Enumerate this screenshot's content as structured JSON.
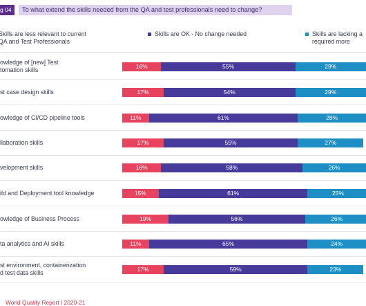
{
  "header": {
    "fig_label": "g 04",
    "title": "To what extend the skills needed from the QA and test professionals need to change?"
  },
  "chart_data": {
    "type": "bar",
    "stacked": true,
    "orientation": "horizontal",
    "xlim": [
      0,
      100
    ],
    "legend_position": "top",
    "series": [
      {
        "name": "Skills are less relevant to current\nQA and Test Professionals",
        "color": "#e8435e",
        "values": [
          16,
          17,
          11,
          17,
          16,
          15,
          19,
          11,
          17
        ]
      },
      {
        "name": "Skills are OK - No change needed",
        "color": "#463a9a",
        "values": [
          55,
          54,
          61,
          55,
          58,
          61,
          56,
          65,
          59
        ]
      },
      {
        "name": "Skills are lacking a\nrequired more",
        "color": "#1d8fc4",
        "values": [
          29,
          29,
          28,
          27,
          26,
          25,
          26,
          24,
          23
        ]
      }
    ],
    "categories": [
      "owledge of [new] Test\ntomation skills",
      "st case design skills",
      "owledge of CI/CD pipeline tools",
      "llaboration skills",
      "velopment skills",
      "ild and Deployment tool knowledge",
      "owledge of Business Process",
      "ta analytics and AI skills",
      "st environment, containerization\nd test data skills"
    ]
  },
  "footer": {
    "source": "World Quality Report  I  2020-21"
  }
}
